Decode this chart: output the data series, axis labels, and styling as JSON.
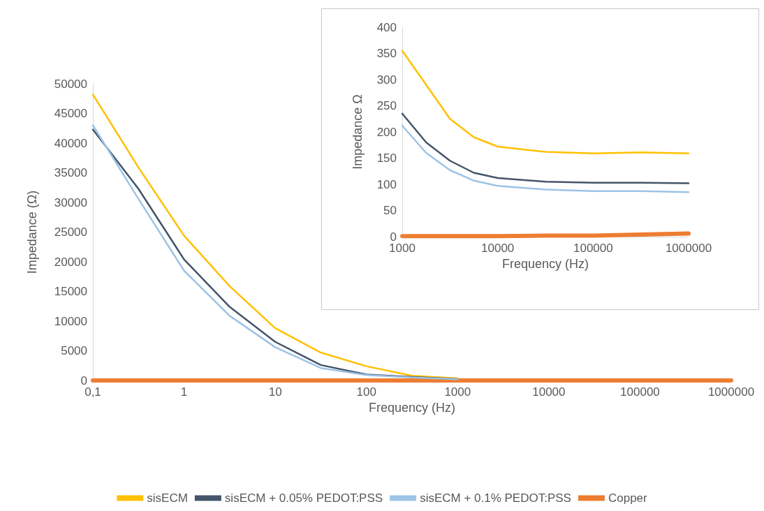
{
  "chart_data": [
    {
      "type": "line",
      "xlabel": "Frequency (Hz)",
      "ylabel": "Impedance (Ω)",
      "log": "x",
      "x": [
        0.1,
        0.316,
        1,
        3.16,
        10,
        31.6,
        100,
        316,
        1000
      ],
      "series": [
        {
          "name": "sisECM",
          "color": "#ffc000",
          "values": [
            48200,
            35900,
            24400,
            15900,
            8800,
            4700,
            2400,
            800,
            360
          ]
        },
        {
          "name": "sisECM + 0.05% PEDOT:PSS",
          "color": "#44546a",
          "values": [
            42300,
            32300,
            20400,
            12400,
            6500,
            2600,
            1000,
            600,
            240
          ]
        },
        {
          "name": "sisECM + 0.1% PEDOT:PSS",
          "color": "#9dc3e6",
          "values": [
            43000,
            30600,
            18500,
            10900,
            5600,
            2100,
            900,
            500,
            210
          ]
        },
        {
          "name": "Copper",
          "color": "#ed7d31",
          "x": [
            0.1,
            1000000
          ],
          "values": [
            0,
            0
          ]
        }
      ],
      "xlim": [
        0.1,
        1000000
      ],
      "xticks": [
        {
          "value": 0.1,
          "label": "0,1"
        },
        1,
        10,
        100,
        1000,
        10000,
        100000,
        1000000
      ],
      "ylim": [
        0,
        50000
      ],
      "yticks": [
        0,
        5000,
        10000,
        15000,
        20000,
        25000,
        30000,
        35000,
        40000,
        45000,
        50000
      ],
      "grid": false,
      "legend": "bottom",
      "marker": "none",
      "line_style": "solid"
    },
    {
      "type": "line",
      "xlabel": "Frequency (Hz)",
      "ylabel": "Impedance Ω",
      "log": "x",
      "x": [
        1000,
        1780,
        3162,
        5623,
        10000,
        31623,
        100000,
        316228,
        1000000
      ],
      "series": [
        {
          "color": "#ffc000",
          "values": [
            355,
            290,
            225,
            190,
            172,
            162,
            159,
            161,
            159
          ]
        },
        {
          "color": "#44546a",
          "values": [
            235,
            180,
            145,
            122,
            112,
            105,
            103,
            103,
            102
          ]
        },
        {
          "color": "#9dc3e6",
          "values": [
            212,
            160,
            127,
            107,
            97,
            90,
            87,
            87,
            85
          ]
        },
        {
          "color": "#ed7d31",
          "values": [
            1,
            1,
            1,
            1,
            1,
            2,
            2,
            4,
            6
          ]
        }
      ],
      "xlim": [
        1000,
        1000000
      ],
      "xticks": [
        1000,
        10000,
        100000,
        1000000
      ],
      "ylim": [
        0,
        400
      ],
      "yticks": [
        0,
        50,
        100,
        150,
        200,
        250,
        300,
        350,
        400
      ],
      "grid": false,
      "legend": false,
      "marker": "none",
      "line_style": "solid"
    }
  ]
}
